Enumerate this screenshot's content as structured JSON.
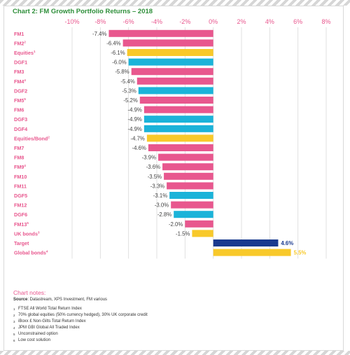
{
  "title": "Chart 2: FM Growth Portfolio Returns – 2018",
  "colors": {
    "title": "#2e8f3a",
    "pink": "#e8578e",
    "cyan": "#1bb3d9",
    "yellow": "#f8c92a",
    "navy": "#1a3a8f",
    "grid": "#d9d9d9",
    "axis_label": "#e8578e",
    "value_label": "#444444",
    "target_value_label": "#1a3a8f",
    "global_value_label": "#f8c92a"
  },
  "chart_data": {
    "type": "bar",
    "orientation": "horizontal",
    "xlim": [
      -10,
      8
    ],
    "x_ticks": [
      "-10%",
      "-8%",
      "-6%",
      "-4%",
      "-2%",
      "0%",
      "2%",
      "4%",
      "6%",
      "8%"
    ],
    "x_tick_values": [
      -10,
      -8,
      -6,
      -4,
      -2,
      0,
      2,
      4,
      6,
      8
    ],
    "grid": true,
    "bars": [
      {
        "label": "FM1",
        "sup": "",
        "value": -7.4,
        "value_label": "-7.4%",
        "color": "pink"
      },
      {
        "label": "FM2",
        "sup": "2",
        "value": -6.4,
        "value_label": "-6.4%",
        "color": "pink"
      },
      {
        "label": "Equities",
        "sup": "1",
        "value": -6.1,
        "value_label": "-6.1%",
        "color": "yellow"
      },
      {
        "label": "DGF1",
        "sup": "",
        "value": -6.0,
        "value_label": "-6.0%",
        "color": "cyan"
      },
      {
        "label": "FM3",
        "sup": "",
        "value": -5.8,
        "value_label": "-5.8%",
        "color": "pink"
      },
      {
        "label": "FM4",
        "sup": "4",
        "value": -5.4,
        "value_label": "-5.4%",
        "color": "pink"
      },
      {
        "label": "DGF2",
        "sup": "",
        "value": -5.3,
        "value_label": "-5.3%",
        "color": "cyan"
      },
      {
        "label": "FM5",
        "sup": "5",
        "value": -5.2,
        "value_label": "-5.2%",
        "color": "pink"
      },
      {
        "label": "FM6",
        "sup": "",
        "value": -4.9,
        "value_label": "-4.9%",
        "color": "pink"
      },
      {
        "label": "DGF3",
        "sup": "",
        "value": -4.9,
        "value_label": "-4.9%",
        "color": "cyan"
      },
      {
        "label": "DGF4",
        "sup": "",
        "value": -4.9,
        "value_label": "-4.9%",
        "color": "cyan"
      },
      {
        "label": "Equities/Bond",
        "sup": "2",
        "value": -4.7,
        "value_label": "-4.7%",
        "color": "yellow"
      },
      {
        "label": "FM7",
        "sup": "",
        "value": -4.6,
        "value_label": "-4.6%",
        "color": "pink"
      },
      {
        "label": "FM8",
        "sup": "",
        "value": -3.9,
        "value_label": "-3.9%",
        "color": "pink"
      },
      {
        "label": "FM9",
        "sup": "4",
        "value": -3.6,
        "value_label": "-3.6%",
        "color": "pink"
      },
      {
        "label": "FM10",
        "sup": "",
        "value": -3.5,
        "value_label": "-3.5%",
        "color": "pink"
      },
      {
        "label": "FM11",
        "sup": "",
        "value": -3.3,
        "value_label": "-3.3%",
        "color": "pink"
      },
      {
        "label": "DGF5",
        "sup": "",
        "value": -3.1,
        "value_label": "-3.1%",
        "color": "cyan"
      },
      {
        "label": "FM12",
        "sup": "",
        "value": -3.0,
        "value_label": "-3.0%",
        "color": "pink"
      },
      {
        "label": "DGF6",
        "sup": "",
        "value": -2.8,
        "value_label": "-2.8%",
        "color": "cyan"
      },
      {
        "label": "FM13",
        "sup": "5",
        "value": -2.0,
        "value_label": "-2.0%",
        "color": "pink"
      },
      {
        "label": "UK bonds",
        "sup": "3",
        "value": -1.5,
        "value_label": "-1.5%",
        "color": "yellow"
      },
      {
        "label": "Target",
        "sup": "",
        "value": 4.6,
        "value_label": "4.6%",
        "color": "navy"
      },
      {
        "label": "Global bonds",
        "sup": "4",
        "value": 5.5,
        "value_label": "5.5%",
        "color": "yellow"
      }
    ]
  },
  "notes": {
    "title": "Chart notes:",
    "source_label": "Source",
    "source_text": ": Datastream, XPS Investment, FM various",
    "footnotes": [
      {
        "mark": "1",
        "text": "FTSE All World Total Return Index"
      },
      {
        "mark": "2",
        "text": "70% global equities (50% currency hedged), 30% UK corporate credit"
      },
      {
        "mark": "3",
        "text": "iBoxx £ Non-Gilts Total Return Index"
      },
      {
        "mark": "4",
        "text": "JPM GBI Global All Traded Index"
      },
      {
        "mark": "5",
        "text": "Unconstrained option"
      },
      {
        "mark": "6",
        "text": "Low cost solution"
      }
    ]
  }
}
